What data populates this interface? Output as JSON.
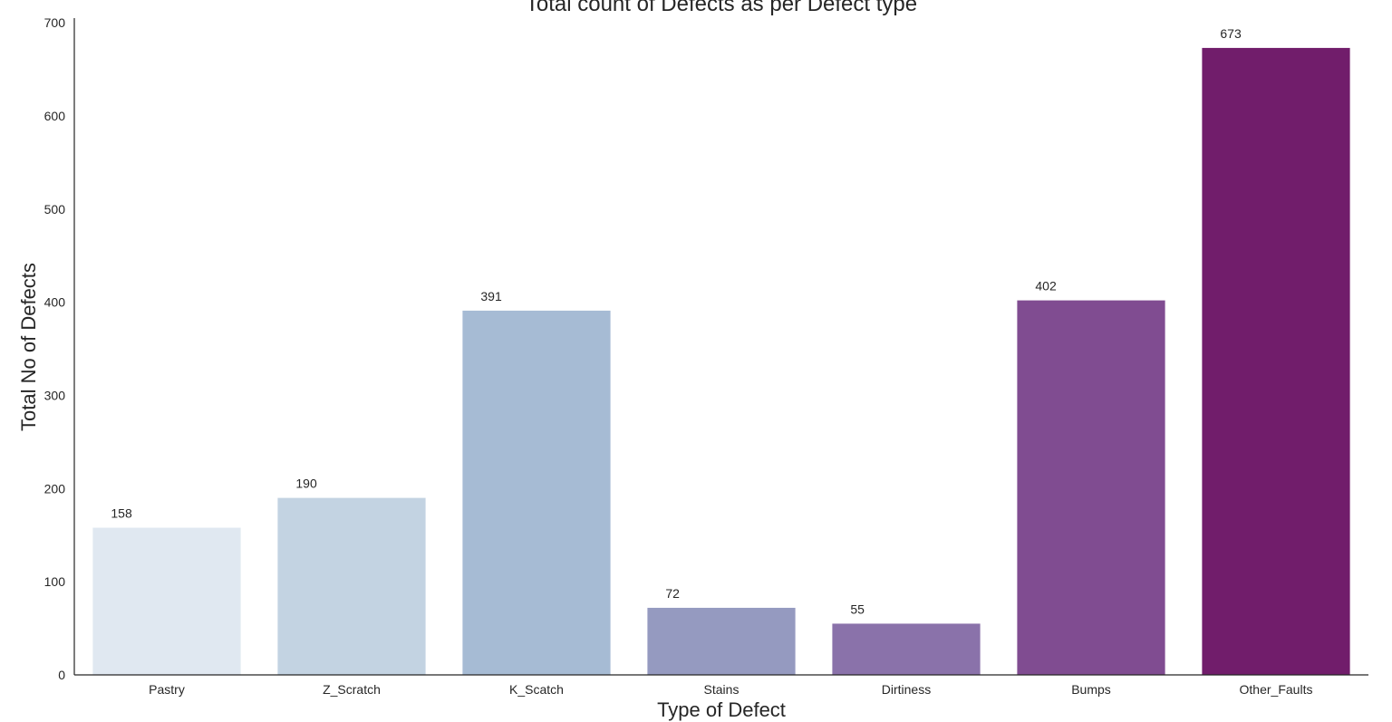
{
  "chart_data": {
    "type": "bar",
    "title": "Total count of Defects as per Defect type",
    "xlabel": "Type of Defect",
    "ylabel": "Total No of Defects",
    "categories": [
      "Pastry",
      "Z_Scratch",
      "K_Scatch",
      "Stains",
      "Dirtiness",
      "Bumps",
      "Other_Faults"
    ],
    "values": [
      158,
      190,
      391,
      72,
      55,
      402,
      673
    ],
    "value_labels": [
      "158",
      "190",
      "391",
      "72",
      "55",
      "402",
      "673"
    ],
    "colors": [
      "#e0e8f1",
      "#c3d3e2",
      "#a6bbd4",
      "#959ac0",
      "#8a72aa",
      "#804c91",
      "#711d6b"
    ],
    "ylim": [
      0,
      705
    ],
    "yticks": [
      0,
      100,
      200,
      300,
      400,
      500,
      600,
      700
    ],
    "ytick_labels": [
      "0",
      "100",
      "200",
      "300",
      "400",
      "500",
      "600",
      "700"
    ],
    "grid": false,
    "legend": "none"
  }
}
